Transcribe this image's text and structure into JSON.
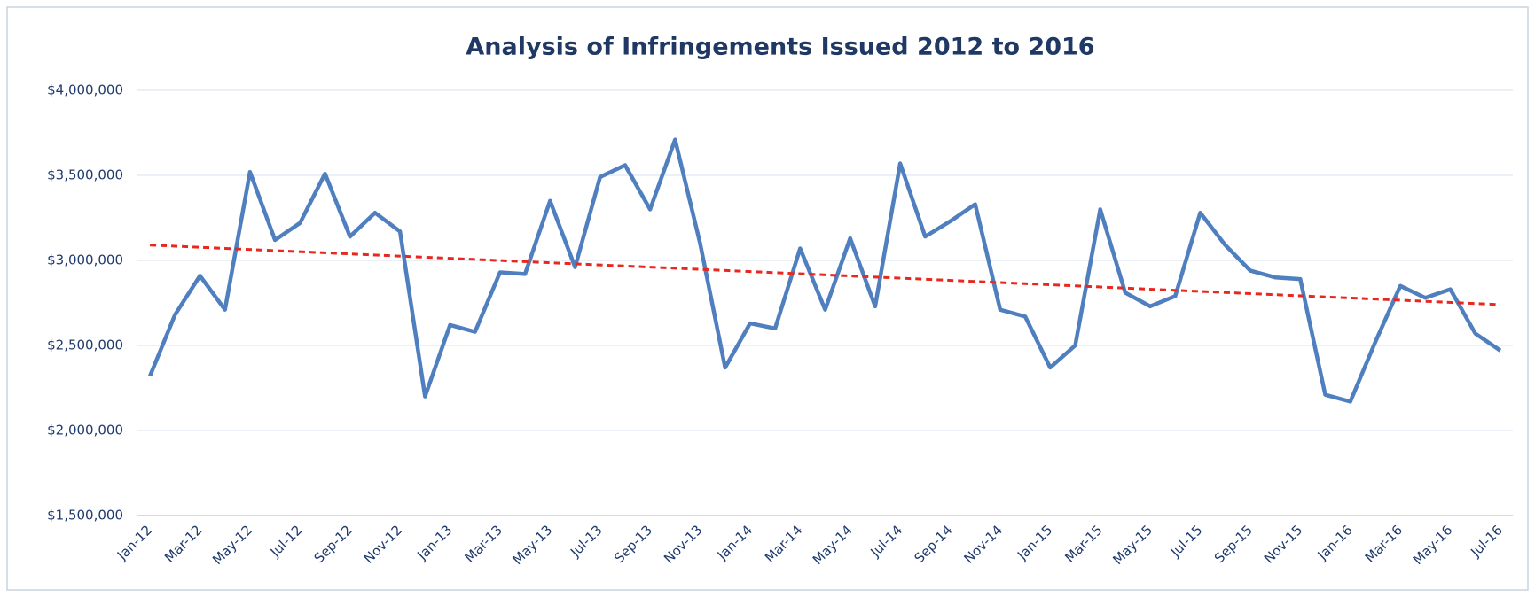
{
  "chart_data": {
    "type": "line",
    "title": "Analysis of Infringements Issued 2012 to 2016",
    "categories": [
      "Jan-12",
      null,
      "Mar-12",
      null,
      "May-12",
      null,
      "Jul-12",
      null,
      "Sep-12",
      null,
      "Nov-12",
      null,
      "Jan-13",
      null,
      "Mar-13",
      null,
      "May-13",
      null,
      "Jul-13",
      null,
      "Sep-13",
      null,
      "Nov-13",
      null,
      "Jan-14",
      null,
      "Mar-14",
      null,
      "May-14",
      null,
      "Jul-14",
      null,
      "Sep-14",
      null,
      "Nov-14",
      null,
      "Jan-15",
      null,
      "Mar-15",
      null,
      "May-15",
      null,
      "Jul-15",
      null,
      "Sep-15",
      null,
      "Nov-15",
      null,
      "Jan-16",
      null,
      "Mar-16",
      null,
      "May-16",
      null,
      "Jul-16"
    ],
    "series": [
      {
        "color": "#4f7fbf",
        "values": [
          2320000,
          2680000,
          2910000,
          2710000,
          3520000,
          3120000,
          3220000,
          3510000,
          3140000,
          3280000,
          3170000,
          2200000,
          2620000,
          2580000,
          2930000,
          2920000,
          3350000,
          2960000,
          3490000,
          3560000,
          3300000,
          3710000,
          3100000,
          2370000,
          2630000,
          2600000,
          3070000,
          2710000,
          3130000,
          2730000,
          3570000,
          3140000,
          3230000,
          3330000,
          2710000,
          2670000,
          2370000,
          2500000,
          3300000,
          2810000,
          2730000,
          2790000,
          3280000,
          3090000,
          2940000,
          2900000,
          2890000,
          2210000,
          2170000,
          2520000,
          2850000,
          2780000,
          2830000,
          2570000,
          2470000
        ]
      }
    ],
    "trendline": {
      "color": "#e8281e",
      "dashed": true,
      "values": [
        3090000,
        2740000
      ]
    },
    "ylim": [
      1500000,
      4000000
    ],
    "yticks": [
      {
        "value": 1500000,
        "label": "$1,500,000"
      },
      {
        "value": 2000000,
        "label": "$2,000,000"
      },
      {
        "value": 2500000,
        "label": "$2,500,000"
      },
      {
        "value": 3000000,
        "label": "$3,000,000"
      },
      {
        "value": 3500000,
        "label": "$3,500,000"
      },
      {
        "value": 4000000,
        "label": "$4,000,000"
      }
    ],
    "grid": true
  }
}
